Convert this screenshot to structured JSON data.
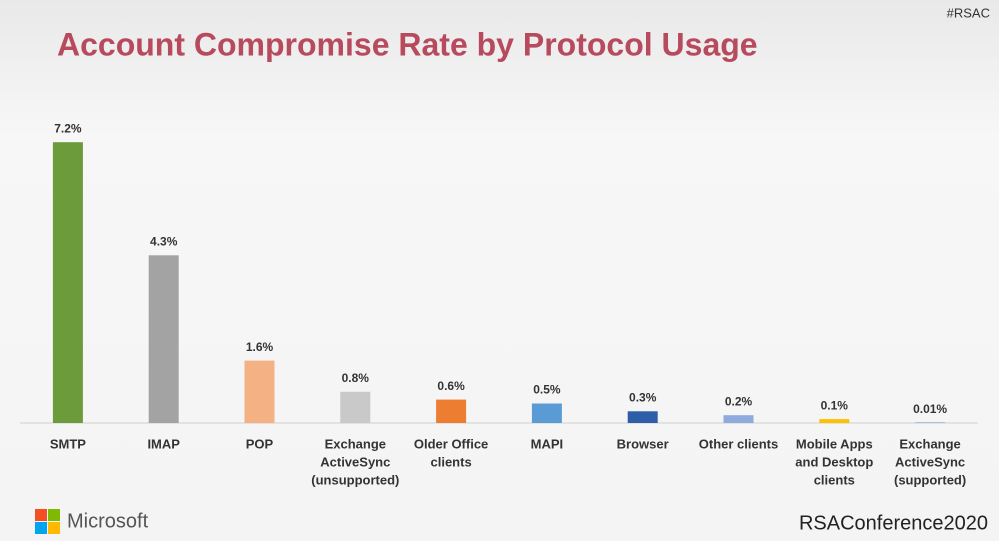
{
  "chart_data": {
    "type": "bar",
    "title": "Account Compromise Rate by Protocol Usage",
    "categories": [
      [
        "SMTP"
      ],
      [
        "IMAP"
      ],
      [
        "POP"
      ],
      [
        "Exchange",
        "ActiveSync",
        "(unsupported)"
      ],
      [
        "Older Office",
        "clients"
      ],
      [
        "MAPI"
      ],
      [
        "Browser"
      ],
      [
        "Other clients"
      ],
      [
        "Mobile Apps",
        "and Desktop",
        "clients"
      ],
      [
        "Exchange",
        "ActiveSync",
        "(supported)"
      ]
    ],
    "values": [
      7.2,
      4.3,
      1.6,
      0.8,
      0.6,
      0.5,
      0.3,
      0.2,
      0.1,
      0.01
    ],
    "value_labels": [
      "7.2%",
      "4.3%",
      "1.6%",
      "0.8%",
      "0.6%",
      "0.5%",
      "0.3%",
      "0.2%",
      "0.1%",
      "0.01%"
    ],
    "colors": [
      "#6b9b3a",
      "#a3a3a3",
      "#f4b183",
      "#c9c9c9",
      "#ed7d31",
      "#5b9bd5",
      "#2e5ea8",
      "#8faadc",
      "#ffc000",
      "#4472c4"
    ],
    "ylim": [
      0,
      8
    ]
  },
  "slide": {
    "hashtag": "#RSAC",
    "company": "Microsoft",
    "conference": "RSAConference2020"
  }
}
